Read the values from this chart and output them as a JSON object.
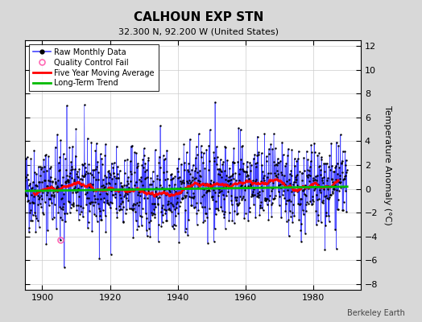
{
  "title": "CALHOUN EXP STN",
  "subtitle": "32.300 N, 92.200 W (United States)",
  "ylabel": "Temperature Anomaly (°C)",
  "credit": "Berkeley Earth",
  "xlim": [
    1895,
    1994
  ],
  "ylim": [
    -8.5,
    12.5
  ],
  "yticks": [
    -8,
    -6,
    -4,
    -2,
    0,
    2,
    4,
    6,
    8,
    10,
    12
  ],
  "xticks": [
    1900,
    1920,
    1940,
    1960,
    1980
  ],
  "bg_color": "#d8d8d8",
  "plot_bg_color": "#ffffff",
  "raw_color": "#4444ff",
  "ma_color": "#ff0000",
  "trend_color": "#00bb00",
  "qc_color": "#ff69b4",
  "seed": 42,
  "n_years": 95,
  "start_year": 1895,
  "title_fontsize": 11,
  "subtitle_fontsize": 8,
  "tick_fontsize": 8,
  "ylabel_fontsize": 8,
  "legend_fontsize": 7,
  "credit_fontsize": 7
}
